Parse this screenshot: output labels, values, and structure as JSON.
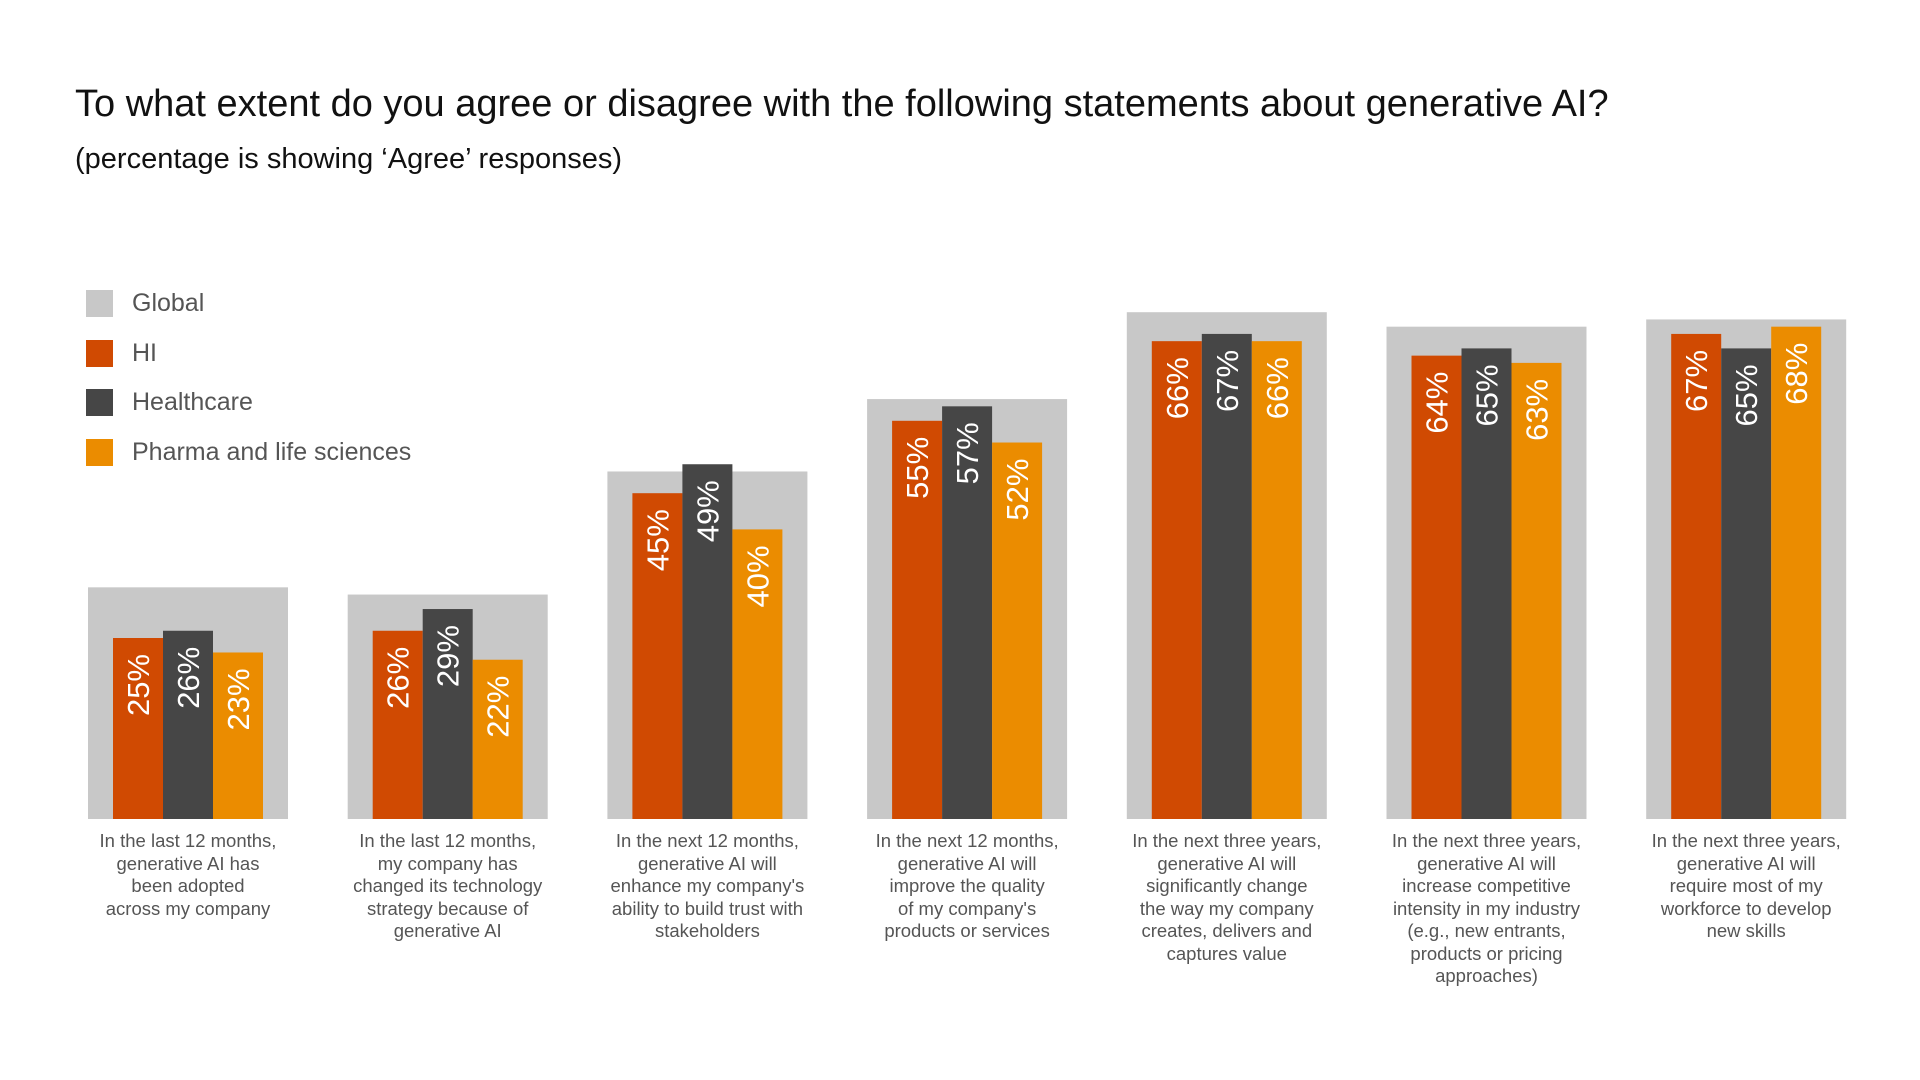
{
  "chart_data": {
    "type": "bar",
    "title": "To what extent do you agree or disagree with the following statements about generative AI?",
    "subtitle": "(percentage is showing ‘Agree’ responses)",
    "xlabel": "",
    "ylabel": "",
    "ylim": [
      0,
      100
    ],
    "grid": false,
    "legend_position": "top-left",
    "categories": [
      "In the last 12 months,\ngenerative AI has\nbeen adopted\nacross my company",
      "In the last 12 months,\nmy company has\nchanged its technology\nstrategy because of\ngenerative AI",
      "In the next 12 months,\ngenerative AI will\nenhance my company's\nability to build trust with\nstakeholders",
      "In the next 12 months,\ngenerative AI will\nimprove the quality\nof my company's\nproducts or services",
      "In the next three years,\ngenerative AI will\nsignificantly change\nthe way my company\ncreates, delivers and\ncaptures value",
      "In the next three years,\ngenerative AI will\nincrease competitive\nintensity in my industry\n(e.g., new entrants,\nproducts or pricing\napproaches)",
      "In the next three years,\ngenerative AI will\nrequire most of my\nworkforce to develop\nnew skills"
    ],
    "background_series": {
      "name": "Global",
      "color": "#c8c8c8",
      "values": [
        32,
        31,
        48,
        58,
        70,
        68,
        69
      ],
      "labeled": false
    },
    "series": [
      {
        "name": "HI",
        "color": "#d04a02",
        "values": [
          25,
          26,
          45,
          55,
          66,
          64,
          67
        ],
        "labels": [
          "25%",
          "26%",
          "45%",
          "55%",
          "66%",
          "64%",
          "67%"
        ]
      },
      {
        "name": "Healthcare",
        "color": "#464646",
        "values": [
          26,
          29,
          49,
          57,
          67,
          65,
          65
        ],
        "labels": [
          "26%",
          "29%",
          "49%",
          "57%",
          "67%",
          "65%",
          "65%"
        ]
      },
      {
        "name": "Pharma and life sciences",
        "color": "#eb8c00",
        "values": [
          23,
          22,
          40,
          52,
          66,
          63,
          68
        ],
        "labels": [
          "23%",
          "22%",
          "40%",
          "52%",
          "66%",
          "63%",
          "68%"
        ]
      }
    ],
    "legend": [
      {
        "name": "Global",
        "color": "#c8c8c8"
      },
      {
        "name": "HI",
        "color": "#d04a02"
      },
      {
        "name": "Healthcare",
        "color": "#464646"
      },
      {
        "name": "Pharma and life sciences",
        "color": "#eb8c00"
      }
    ]
  }
}
